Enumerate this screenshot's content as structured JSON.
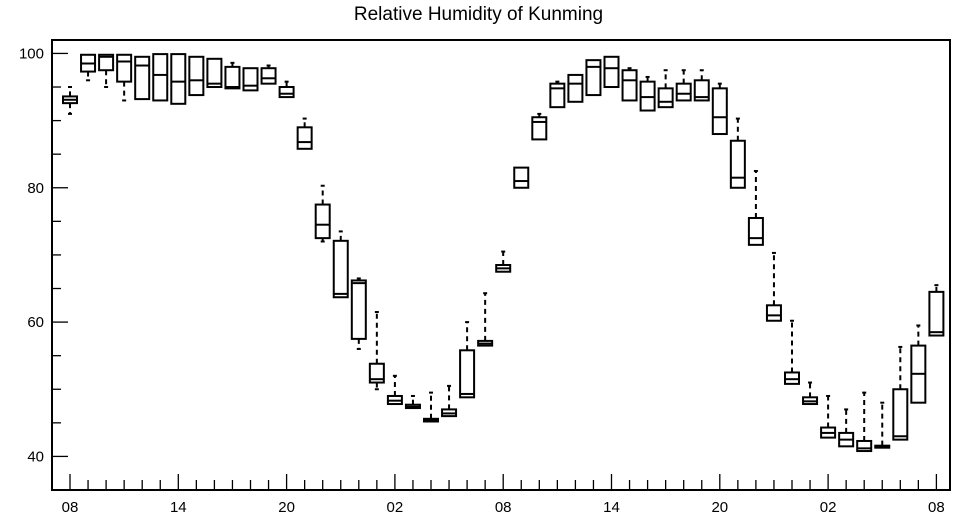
{
  "chart_data": {
    "type": "box",
    "title": "Relative Humidity of Kunming",
    "xlabel": "",
    "ylabel": "",
    "ylim": [
      35,
      102
    ],
    "yticks": [
      40,
      60,
      80,
      100
    ],
    "xticks": [
      {
        "hour": 0,
        "label": "08"
      },
      {
        "hour": 6,
        "label": "14"
      },
      {
        "hour": 12,
        "label": "20"
      },
      {
        "hour": 18,
        "label": "02"
      },
      {
        "hour": 24,
        "label": "08"
      },
      {
        "hour": 30,
        "label": "14"
      },
      {
        "hour": 36,
        "label": "20"
      },
      {
        "hour": 42,
        "label": "02"
      },
      {
        "hour": 48,
        "label": "08"
      }
    ],
    "grid": false,
    "boxes": [
      {
        "x": 0,
        "q1": 92.6,
        "q3": 93.6,
        "median": 93.1,
        "lo": 91.0,
        "hi": 95.0
      },
      {
        "x": 1,
        "q1": 97.3,
        "q3": 99.8,
        "median": 98.5,
        "lo": 96.0,
        "hi": 99.9
      },
      {
        "x": 2,
        "q1": 97.5,
        "q3": 99.8,
        "median": 99.5,
        "lo": 95.0,
        "hi": 99.9
      },
      {
        "x": 3,
        "q1": 95.8,
        "q3": 99.8,
        "median": 98.8,
        "lo": 93.0,
        "hi": 99.9
      },
      {
        "x": 4,
        "q1": 93.2,
        "q3": 99.5,
        "median": 98.2,
        "lo": 93.0,
        "hi": 99.7
      },
      {
        "x": 5,
        "q1": 93.0,
        "q3": 99.9,
        "median": 96.8,
        "lo": 93.0,
        "hi": 100.0
      },
      {
        "x": 6,
        "q1": 92.5,
        "q3": 99.9,
        "median": 95.8,
        "lo": 92.5,
        "hi": 100.0
      },
      {
        "x": 7,
        "q1": 93.8,
        "q3": 99.5,
        "median": 96.0,
        "lo": 93.8,
        "hi": 99.7
      },
      {
        "x": 8,
        "q1": 95.0,
        "q3": 99.2,
        "median": 95.5,
        "lo": 95.0,
        "hi": 99.4
      },
      {
        "x": 9,
        "q1": 94.8,
        "q3": 98.0,
        "median": 95.0,
        "lo": 94.8,
        "hi": 98.6
      },
      {
        "x": 10,
        "q1": 94.5,
        "q3": 97.8,
        "median": 95.2,
        "lo": 94.5,
        "hi": 98.0
      },
      {
        "x": 11,
        "q1": 95.5,
        "q3": 97.8,
        "median": 96.3,
        "lo": 95.5,
        "hi": 98.2
      },
      {
        "x": 12,
        "q1": 93.5,
        "q3": 95.0,
        "median": 94.0,
        "lo": 93.5,
        "hi": 95.8
      },
      {
        "x": 13,
        "q1": 85.8,
        "q3": 89.0,
        "median": 86.8,
        "lo": 85.8,
        "hi": 90.3
      },
      {
        "x": 14,
        "q1": 72.5,
        "q3": 77.5,
        "median": 74.5,
        "lo": 72.0,
        "hi": 80.3
      },
      {
        "x": 15,
        "q1": 63.7,
        "q3": 72.1,
        "median": 64.2,
        "lo": 63.7,
        "hi": 73.5
      },
      {
        "x": 16,
        "q1": 57.5,
        "q3": 66.2,
        "median": 65.8,
        "lo": 56.0,
        "hi": 66.5
      },
      {
        "x": 17,
        "q1": 51.0,
        "q3": 53.8,
        "median": 51.5,
        "lo": 50.0,
        "hi": 61.5
      },
      {
        "x": 18,
        "q1": 47.8,
        "q3": 49.0,
        "median": 48.3,
        "lo": 47.8,
        "hi": 52.0
      },
      {
        "x": 19,
        "q1": 47.2,
        "q3": 47.7,
        "median": 47.4,
        "lo": 47.0,
        "hi": 49.0
      },
      {
        "x": 20,
        "q1": 45.2,
        "q3": 45.6,
        "median": 45.4,
        "lo": 45.0,
        "hi": 49.5
      },
      {
        "x": 21,
        "q1": 46.0,
        "q3": 47.0,
        "median": 46.4,
        "lo": 45.8,
        "hi": 50.5
      },
      {
        "x": 22,
        "q1": 48.8,
        "q3": 55.8,
        "median": 49.3,
        "lo": 48.8,
        "hi": 60.0
      },
      {
        "x": 23,
        "q1": 56.5,
        "q3": 57.2,
        "median": 56.8,
        "lo": 56.5,
        "hi": 64.3
      },
      {
        "x": 24,
        "q1": 67.5,
        "q3": 68.5,
        "median": 68.0,
        "lo": 67.3,
        "hi": 70.5
      },
      {
        "x": 25,
        "q1": 80.0,
        "q3": 83.0,
        "median": 81.0,
        "lo": 80.0,
        "hi": 83.0
      },
      {
        "x": 26,
        "q1": 87.2,
        "q3": 90.5,
        "median": 89.8,
        "lo": 87.2,
        "hi": 91.0
      },
      {
        "x": 27,
        "q1": 92.0,
        "q3": 95.5,
        "median": 94.8,
        "lo": 92.0,
        "hi": 95.8
      },
      {
        "x": 28,
        "q1": 92.8,
        "q3": 96.8,
        "median": 95.5,
        "lo": 92.8,
        "hi": 97.0
      },
      {
        "x": 29,
        "q1": 93.8,
        "q3": 99.0,
        "median": 98.0,
        "lo": 93.8,
        "hi": 99.2
      },
      {
        "x": 30,
        "q1": 95.0,
        "q3": 99.5,
        "median": 97.8,
        "lo": 95.0,
        "hi": 99.7
      },
      {
        "x": 31,
        "q1": 93.0,
        "q3": 97.5,
        "median": 96.0,
        "lo": 93.0,
        "hi": 97.8
      },
      {
        "x": 32,
        "q1": 91.5,
        "q3": 95.8,
        "median": 93.5,
        "lo": 91.5,
        "hi": 96.5
      },
      {
        "x": 33,
        "q1": 92.0,
        "q3": 94.8,
        "median": 92.8,
        "lo": 92.0,
        "hi": 97.5
      },
      {
        "x": 34,
        "q1": 93.0,
        "q3": 95.5,
        "median": 94.0,
        "lo": 93.0,
        "hi": 97.5
      },
      {
        "x": 35,
        "q1": 93.0,
        "q3": 96.0,
        "median": 93.5,
        "lo": 93.0,
        "hi": 97.5
      },
      {
        "x": 36,
        "q1": 88.0,
        "q3": 94.8,
        "median": 90.5,
        "lo": 88.0,
        "hi": 95.5
      },
      {
        "x": 37,
        "q1": 80.0,
        "q3": 87.0,
        "median": 81.5,
        "lo": 80.0,
        "hi": 90.3
      },
      {
        "x": 38,
        "q1": 71.5,
        "q3": 75.5,
        "median": 72.5,
        "lo": 71.5,
        "hi": 82.5
      },
      {
        "x": 39,
        "q1": 60.2,
        "q3": 62.5,
        "median": 61.0,
        "lo": 60.2,
        "hi": 70.3
      },
      {
        "x": 40,
        "q1": 50.8,
        "q3": 52.5,
        "median": 51.5,
        "lo": 50.8,
        "hi": 60.2
      },
      {
        "x": 41,
        "q1": 47.8,
        "q3": 48.8,
        "median": 48.2,
        "lo": 47.8,
        "hi": 51.0
      },
      {
        "x": 42,
        "q1": 42.8,
        "q3": 44.3,
        "median": 43.5,
        "lo": 42.8,
        "hi": 49.0
      },
      {
        "x": 43,
        "q1": 41.5,
        "q3": 43.5,
        "median": 42.5,
        "lo": 41.5,
        "hi": 47.0
      },
      {
        "x": 44,
        "q1": 40.8,
        "q3": 42.3,
        "median": 41.2,
        "lo": 40.8,
        "hi": 49.5
      },
      {
        "x": 45,
        "q1": 41.3,
        "q3": 41.6,
        "median": 41.4,
        "lo": 41.3,
        "hi": 48.0
      },
      {
        "x": 46,
        "q1": 42.5,
        "q3": 50.0,
        "median": 43.0,
        "lo": 42.3,
        "hi": 56.3
      },
      {
        "x": 47,
        "q1": 48.0,
        "q3": 56.5,
        "median": 52.3,
        "lo": 47.8,
        "hi": 59.5
      },
      {
        "x": 48,
        "q1": 58.0,
        "q3": 64.5,
        "median": 58.5,
        "lo": 58.0,
        "hi": 65.5
      }
    ]
  }
}
